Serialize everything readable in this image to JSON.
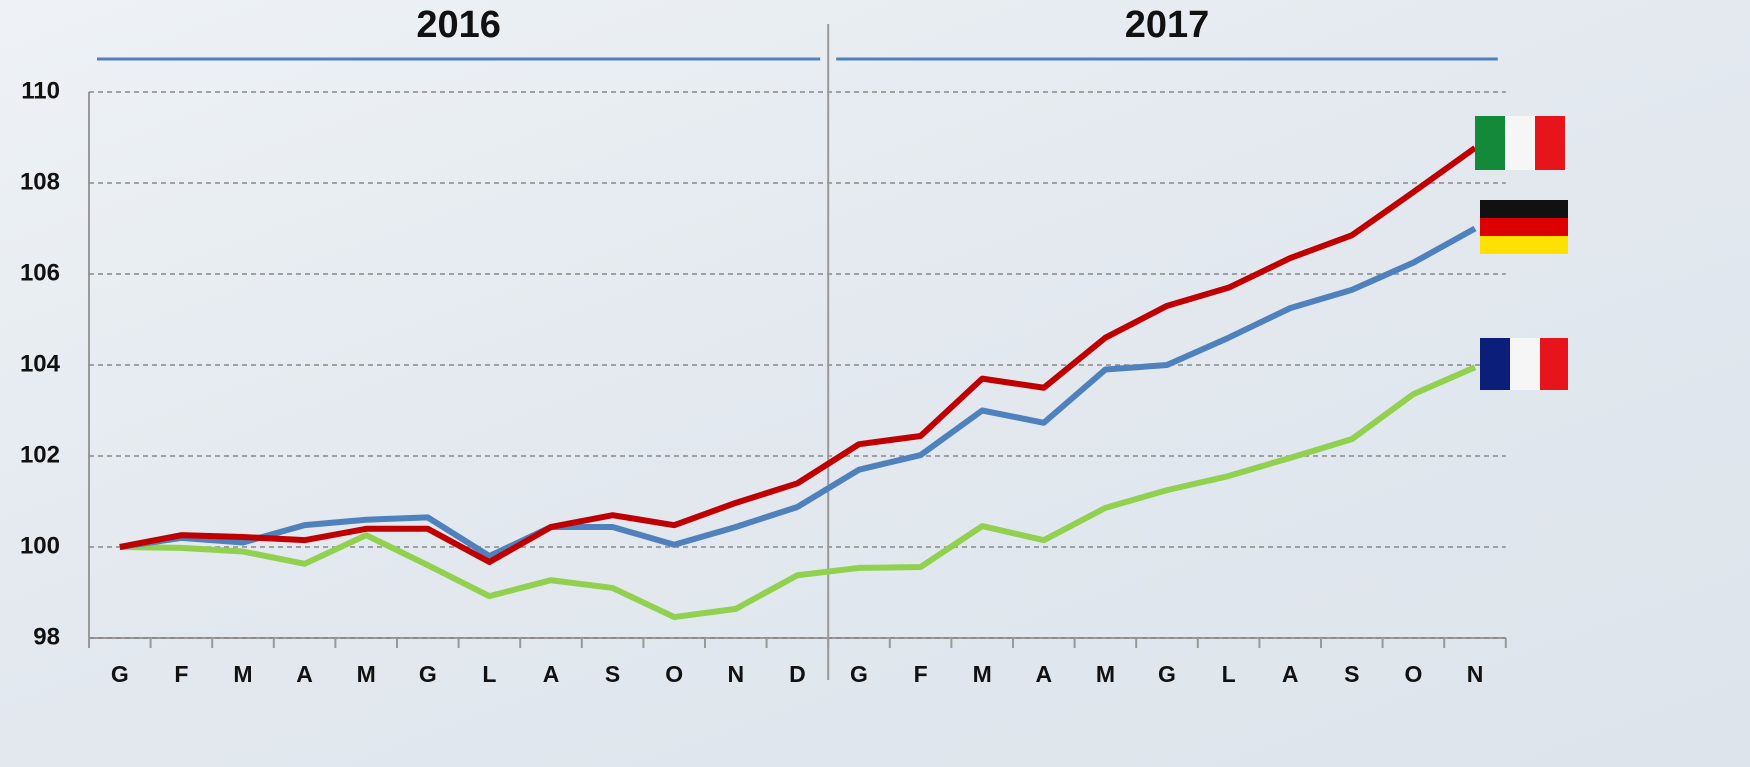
{
  "chart_data": {
    "type": "line",
    "categories": [
      "G",
      "F",
      "M",
      "A",
      "M",
      "G",
      "L",
      "A",
      "S",
      "O",
      "N",
      "D",
      "G",
      "F",
      "M",
      "A",
      "M",
      "G",
      "L",
      "A",
      "S",
      "O",
      "N"
    ],
    "groups": [
      {
        "label": "2016",
        "size": 12
      },
      {
        "label": "2017",
        "size": 11
      }
    ],
    "series": [
      {
        "color": "#c00000",
        "values": [
          100.0,
          100.26,
          100.22,
          100.15,
          100.4,
          100.4,
          99.67,
          100.44,
          100.7,
          100.48,
          100.97,
          101.4,
          102.26,
          102.44,
          103.7,
          103.5,
          104.6,
          105.3,
          105.7,
          106.35,
          106.85,
          107.8,
          108.77
        ]
      },
      {
        "color": "#4f81bd",
        "values": [
          100.0,
          100.2,
          100.1,
          100.48,
          100.6,
          100.65,
          99.8,
          100.44,
          100.44,
          100.05,
          100.44,
          100.88,
          101.7,
          102.02,
          103.0,
          102.73,
          103.9,
          104.0,
          104.6,
          105.25,
          105.65,
          106.25,
          107.0
        ]
      },
      {
        "color": "#92d050",
        "values": [
          100.0,
          99.98,
          99.9,
          99.63,
          100.26,
          99.6,
          98.92,
          99.27,
          99.1,
          98.46,
          98.64,
          99.38,
          99.54,
          99.56,
          100.46,
          100.15,
          100.86,
          101.25,
          101.56,
          101.96,
          102.37,
          103.36,
          103.95
        ]
      }
    ],
    "ylim": [
      98,
      110
    ],
    "yticks": [
      98,
      100,
      102,
      104,
      106,
      108,
      110
    ],
    "grid": true
  }
}
